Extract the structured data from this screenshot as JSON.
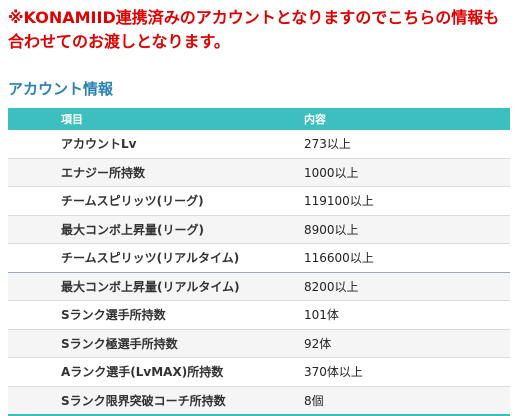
{
  "notice": "※KONAMIID連携済みのアカウントとなりますのでこちらの情報も合わせてのお渡しとなります。",
  "section_title": "アカウント情報",
  "table": {
    "headers": [
      "項目",
      "内容"
    ],
    "rows": [
      {
        "item": "アカウントLv",
        "value": "273以上"
      },
      {
        "item": "エナジー所持数",
        "value": "1000以上"
      },
      {
        "item": "チームスピリッツ(リーグ)",
        "value": "119100以上"
      },
      {
        "item": "最大コンボ上昇量(リーグ)",
        "value": "8900以上"
      },
      {
        "item": "チームスピリッツ(リアルタイム)",
        "value": "116600以上"
      },
      {
        "item": "最大コンボ上昇量(リアルタイム)",
        "value": "8200以上"
      },
      {
        "item": "Sランク選手所持数",
        "value": "101体"
      },
      {
        "item": "Sランク極選手所持数",
        "value": "92体"
      },
      {
        "item": "Aランク選手(LvMAX)所持数",
        "value": "370体以上"
      },
      {
        "item": "Sランク限界突破コーチ所持数",
        "value": "8個"
      }
    ]
  },
  "colors": {
    "notice": "#e00000",
    "title": "#2a7fb5",
    "header_bg": "#3dbfbf"
  }
}
